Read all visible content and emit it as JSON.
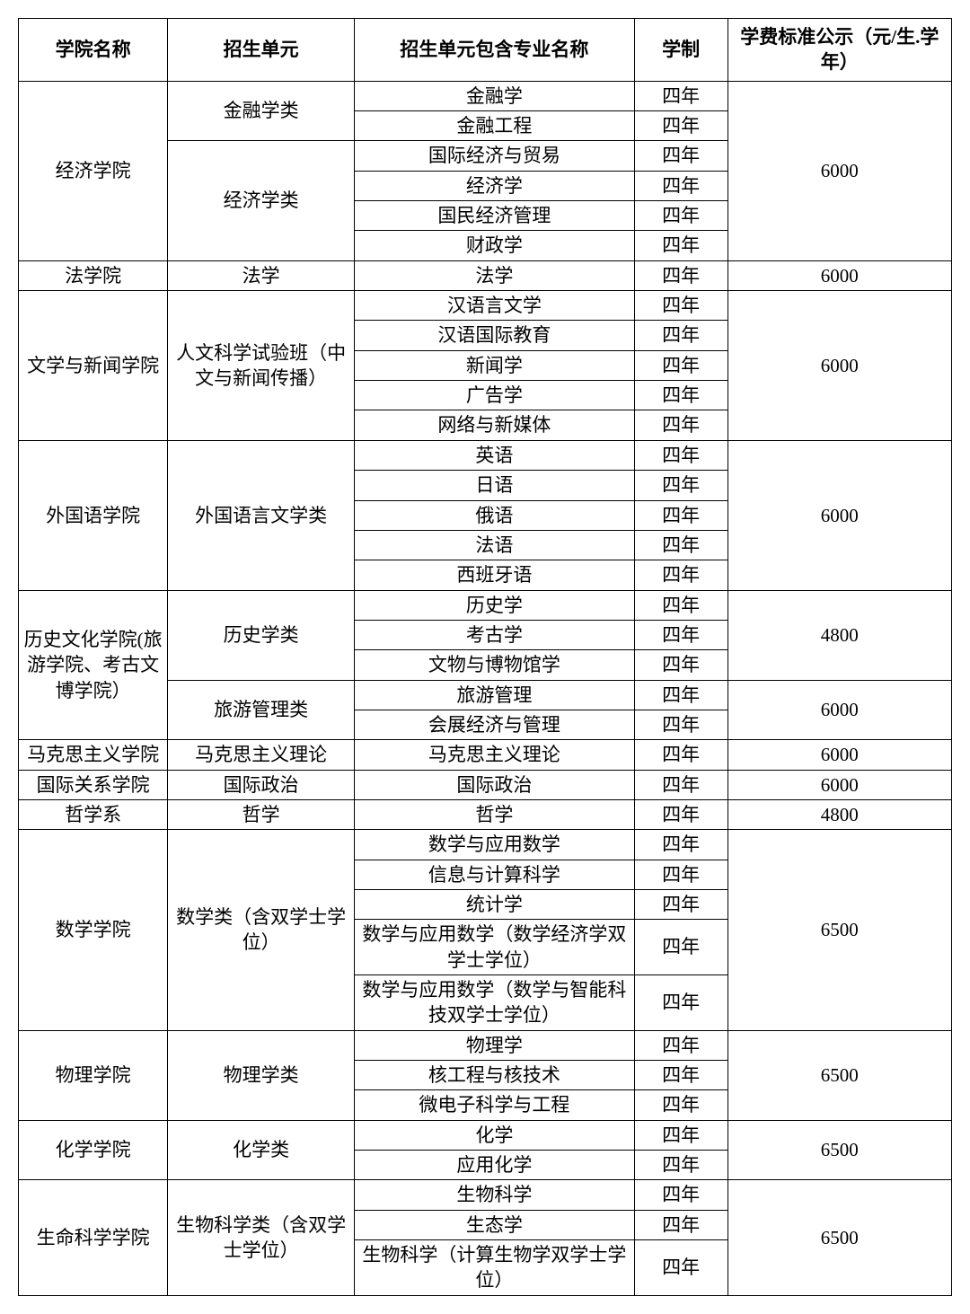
{
  "headers": {
    "col1": "学院名称",
    "col2": "招生单元",
    "col3": "招生单元包含专业名称",
    "col4": "学制",
    "col5": "学费标准公示（元/生.学年）"
  },
  "blocks": [
    {
      "college": "经济学院",
      "fee_groups": [
        {
          "fee": "6000",
          "units": [
            {
              "name": "金融学类",
              "majors": [
                [
                  "金融学",
                  "四年"
                ],
                [
                  "金融工程",
                  "四年"
                ]
              ]
            },
            {
              "name": "经济学类",
              "majors": [
                [
                  "国际经济与贸易",
                  "四年"
                ],
                [
                  "经济学",
                  "四年"
                ],
                [
                  "国民经济管理",
                  "四年"
                ],
                [
                  "财政学",
                  "四年"
                ]
              ]
            }
          ]
        }
      ]
    },
    {
      "college": "法学院",
      "fee_groups": [
        {
          "fee": "6000",
          "units": [
            {
              "name": "法学",
              "majors": [
                [
                  "法学",
                  "四年"
                ]
              ]
            }
          ]
        }
      ]
    },
    {
      "college": "文学与新闻学院",
      "fee_groups": [
        {
          "fee": "6000",
          "units": [
            {
              "name": "人文科学试验班（中文与新闻传播）",
              "majors": [
                [
                  "汉语言文学",
                  "四年"
                ],
                [
                  "汉语国际教育",
                  "四年"
                ],
                [
                  "新闻学",
                  "四年"
                ],
                [
                  "广告学",
                  "四年"
                ],
                [
                  "网络与新媒体",
                  "四年"
                ]
              ]
            }
          ]
        }
      ]
    },
    {
      "college": "外国语学院",
      "fee_groups": [
        {
          "fee": "6000",
          "units": [
            {
              "name": "外国语言文学类",
              "majors": [
                [
                  "英语",
                  "四年"
                ],
                [
                  "日语",
                  "四年"
                ],
                [
                  "俄语",
                  "四年"
                ],
                [
                  "法语",
                  "四年"
                ],
                [
                  "西班牙语",
                  "四年"
                ]
              ]
            }
          ]
        }
      ]
    },
    {
      "college": "历史文化学院(旅游学院、考古文博学院）",
      "fee_groups": [
        {
          "fee": "4800",
          "units": [
            {
              "name": "历史学类",
              "majors": [
                [
                  "历史学",
                  "四年"
                ],
                [
                  "考古学",
                  "四年"
                ],
                [
                  "文物与博物馆学",
                  "四年"
                ]
              ]
            }
          ]
        },
        {
          "fee": "6000",
          "units": [
            {
              "name": "旅游管理类",
              "majors": [
                [
                  "旅游管理",
                  "四年"
                ],
                [
                  "会展经济与管理",
                  "四年"
                ]
              ]
            }
          ]
        }
      ]
    },
    {
      "college": "马克思主义学院",
      "fee_groups": [
        {
          "fee": "6000",
          "units": [
            {
              "name": "马克思主义理论",
              "majors": [
                [
                  "马克思主义理论",
                  "四年"
                ]
              ]
            }
          ]
        }
      ]
    },
    {
      "college": "国际关系学院",
      "fee_groups": [
        {
          "fee": "6000",
          "units": [
            {
              "name": "国际政治",
              "majors": [
                [
                  "国际政治",
                  "四年"
                ]
              ]
            }
          ]
        }
      ]
    },
    {
      "college": "哲学系",
      "fee_groups": [
        {
          "fee": "4800",
          "units": [
            {
              "name": "哲学",
              "majors": [
                [
                  "哲学",
                  "四年"
                ]
              ]
            }
          ]
        }
      ]
    },
    {
      "college": "数学学院",
      "fee_groups": [
        {
          "fee": "6500",
          "units": [
            {
              "name": "数学类（含双学士学位）",
              "majors": [
                [
                  "数学与应用数学",
                  "四年"
                ],
                [
                  "信息与计算科学",
                  "四年"
                ],
                [
                  "统计学",
                  "四年"
                ],
                [
                  "数学与应用数学（数学经济学双学士学位）",
                  "四年"
                ],
                [
                  "数学与应用数学（数学与智能科技双学士学位）",
                  "四年"
                ]
              ]
            }
          ]
        }
      ]
    },
    {
      "college": "物理学院",
      "fee_groups": [
        {
          "fee": "6500",
          "units": [
            {
              "name": "物理学类",
              "majors": [
                [
                  "物理学",
                  "四年"
                ],
                [
                  "核工程与核技术",
                  "四年"
                ],
                [
                  "微电子科学与工程",
                  "四年"
                ]
              ]
            }
          ]
        }
      ]
    },
    {
      "college": "化学学院",
      "fee_groups": [
        {
          "fee": "6500",
          "units": [
            {
              "name": "化学类",
              "majors": [
                [
                  "化学",
                  "四年"
                ],
                [
                  "应用化学",
                  "四年"
                ]
              ]
            }
          ]
        }
      ]
    },
    {
      "college": "生命科学学院",
      "fee_groups": [
        {
          "fee": "6500",
          "units": [
            {
              "name": "生物科学类（含双学士学位）",
              "majors": [
                [
                  "生物科学",
                  "四年"
                ],
                [
                  "生态学",
                  "四年"
                ],
                [
                  "生物科学（计算生物学双学士学位）",
                  "四年"
                ]
              ]
            }
          ]
        }
      ]
    }
  ],
  "styling": {
    "border_color": "#000000",
    "background_color": "#ffffff",
    "font_family": "SimSun",
    "header_fontsize": 21,
    "cell_fontsize": 21,
    "header_fontweight": "bold"
  }
}
